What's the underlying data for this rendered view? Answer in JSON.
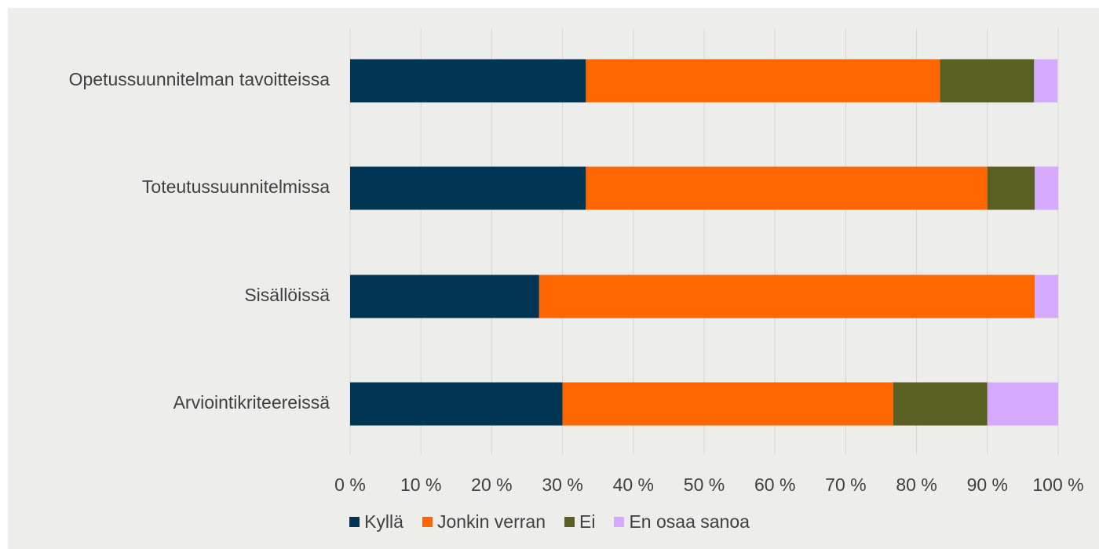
{
  "chart_data": {
    "type": "bar",
    "orientation": "horizontal",
    "stacked": "percent",
    "categories": [
      "Opetussuunnitelman tavoitteissa",
      "Toteutussuunnitelmissa",
      "Sisällöissä",
      "Arviointikriteereissä"
    ],
    "series": [
      {
        "name": "Kyllä",
        "color": "#003653",
        "values": [
          33.3,
          33.3,
          26.7,
          30.0
        ]
      },
      {
        "name": "Jonkin verran",
        "color": "#ff6600",
        "values": [
          50.0,
          56.7,
          70.0,
          46.7
        ]
      },
      {
        "name": "Ei",
        "color": "#596022",
        "values": [
          13.3,
          6.7,
          0.0,
          13.3
        ]
      },
      {
        "name": "En osaa sanoa",
        "color": "#d5aafc",
        "values": [
          3.3,
          3.3,
          3.3,
          10.0
        ]
      }
    ],
    "xlim": [
      0,
      100
    ],
    "xticks": [
      "0 %",
      "10 %",
      "20 %",
      "30 %",
      "40 %",
      "50 %",
      "60 %",
      "70 %",
      "80 %",
      "90 %",
      "100 %"
    ],
    "grid": "vertical",
    "legend": "bottom"
  }
}
